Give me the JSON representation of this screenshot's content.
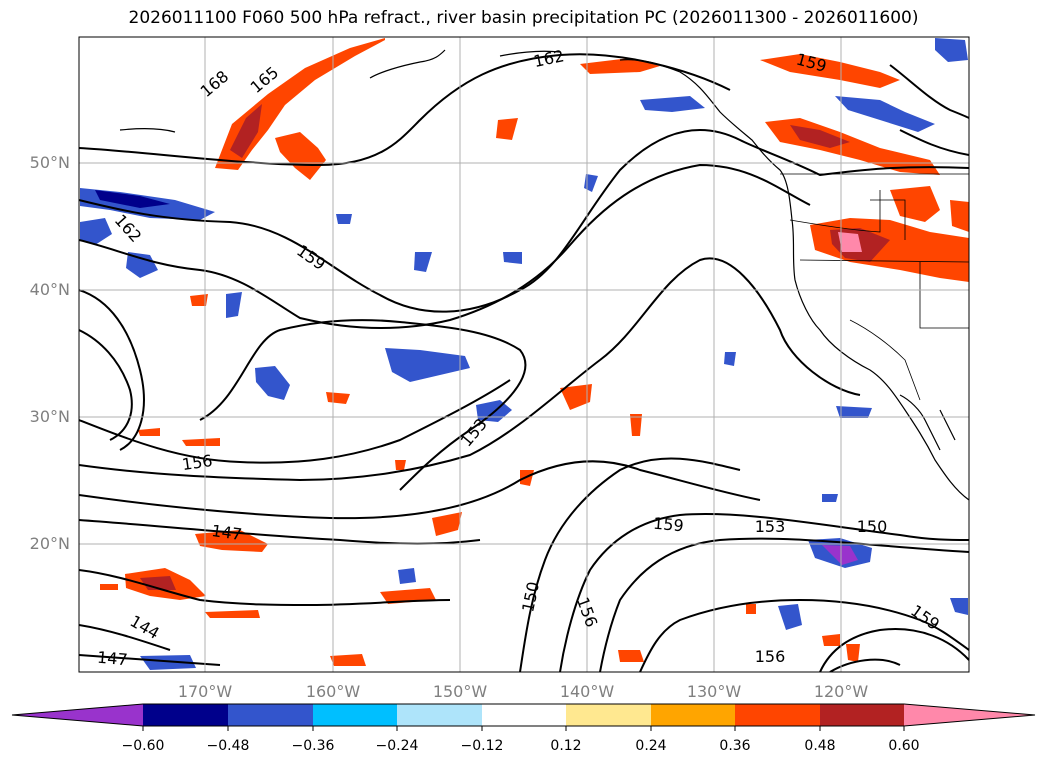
{
  "title": "2026011100 F060 500 hPa refract., river basin precipitation PC (2026011300 - 2026011600)",
  "lat_labels": [
    "50°N",
    "40°N",
    "30°N",
    "20°N"
  ],
  "lon_labels": [
    "170°W",
    "160°W",
    "150°W",
    "140°W",
    "130°W",
    "120°W"
  ],
  "contour_labels": [
    {
      "text": "168"
    },
    {
      "text": "165"
    },
    {
      "text": "162"
    },
    {
      "text": "159"
    },
    {
      "text": "162"
    },
    {
      "text": "159"
    },
    {
      "text": "153"
    },
    {
      "text": "156"
    },
    {
      "text": "147"
    },
    {
      "text": "144"
    },
    {
      "text": "147"
    },
    {
      "text": "150"
    },
    {
      "text": "156"
    },
    {
      "text": "159"
    },
    {
      "text": "153"
    },
    {
      "text": "150"
    },
    {
      "text": "159"
    },
    {
      "text": "156"
    }
  ],
  "colorbar": {
    "ticks": [
      "−0.60",
      "−0.48",
      "−0.36",
      "−0.24",
      "−0.12",
      "0.12",
      "0.24",
      "0.36",
      "0.48",
      "0.60"
    ],
    "colors": [
      "#9933cc",
      "#00008b",
      "#3355cc",
      "#00bfff",
      "#aee4fa",
      "#ffffff",
      "#ffe890",
      "#ffa500",
      "#ff4500",
      "#b22222",
      "#ff88aa"
    ]
  },
  "colors": {
    "contour": "#000000",
    "grid": "#b0b0b0",
    "tick_label": "#808080"
  }
}
